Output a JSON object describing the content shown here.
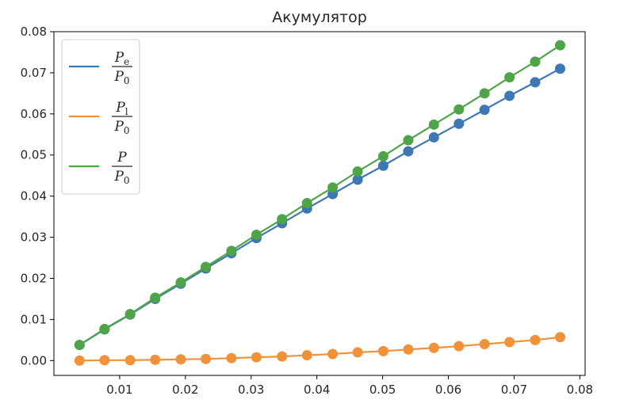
{
  "chart_data": {
    "type": "line",
    "title": "Акумулятор",
    "xlabel": "",
    "ylabel": "",
    "xlim": [
      0.0,
      0.0808
    ],
    "ylim": [
      -0.0036,
      0.08
    ],
    "xticks": [
      0.01,
      0.02,
      0.03,
      0.04,
      0.05,
      0.06,
      0.07,
      0.08
    ],
    "yticks": [
      0.0,
      0.01,
      0.02,
      0.03,
      0.04,
      0.05,
      0.06,
      0.07,
      0.08
    ],
    "xtick_labels": [
      "0.01",
      "0.02",
      "0.03",
      "0.04",
      "0.05",
      "0.06",
      "0.07",
      "0.08"
    ],
    "ytick_labels": [
      "0.00",
      "0.01",
      "0.02",
      "0.03",
      "0.04",
      "0.05",
      "0.06",
      "0.07",
      "0.08"
    ],
    "grid": false,
    "legend_position": "top-left",
    "x": [
      0.0039,
      0.0077,
      0.0116,
      0.0154,
      0.0193,
      0.0231,
      0.027,
      0.0308,
      0.0347,
      0.0385,
      0.0424,
      0.0462,
      0.0501,
      0.0539,
      0.0578,
      0.0616,
      0.0655,
      0.0693,
      0.0732,
      0.077
    ],
    "series": [
      {
        "legend": {
          "num": "P",
          "num_sub": "e",
          "den": "P",
          "den_sub": "0"
        },
        "color": "#3d78b4",
        "values": [
          0.0038,
          0.0076,
          0.0112,
          0.015,
          0.0187,
          0.0224,
          0.0261,
          0.0298,
          0.0334,
          0.037,
          0.0405,
          0.044,
          0.0474,
          0.0509,
          0.0543,
          0.0576,
          0.061,
          0.0644,
          0.0677,
          0.071
        ]
      },
      {
        "legend": {
          "num": "P",
          "num_sub": "l",
          "den": "P",
          "den_sub": "0"
        },
        "color": "#f0923a",
        "values": [
          0.0,
          0.0001,
          0.0001,
          0.0002,
          0.0003,
          0.0004,
          0.0006,
          0.0008,
          0.001,
          0.0013,
          0.0016,
          0.002,
          0.0023,
          0.0027,
          0.0031,
          0.0035,
          0.004,
          0.0045,
          0.005,
          0.0057
        ]
      },
      {
        "legend": {
          "num": "P",
          "num_sub": "",
          "den": "P",
          "den_sub": "0"
        },
        "color": "#4ea548",
        "values": [
          0.0038,
          0.0077,
          0.0113,
          0.0153,
          0.019,
          0.0228,
          0.0267,
          0.0306,
          0.0344,
          0.0383,
          0.0421,
          0.046,
          0.0497,
          0.0536,
          0.0574,
          0.0611,
          0.065,
          0.0689,
          0.0727,
          0.0767
        ]
      }
    ]
  }
}
